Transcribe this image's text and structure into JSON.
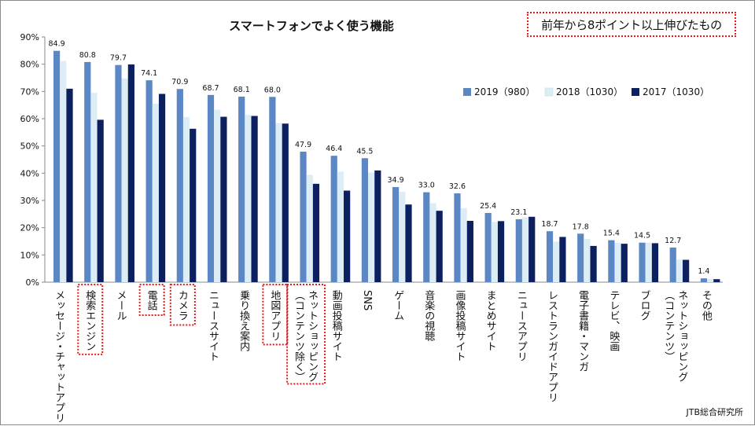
{
  "chart_data": {
    "type": "bar",
    "title": "スマートフォンでよく使う機能",
    "ylim": [
      0,
      90
    ],
    "y_ticks": [
      "0%",
      "10%",
      "20%",
      "30%",
      "40%",
      "50%",
      "60%",
      "70%",
      "80%",
      "90%"
    ],
    "categories": [
      "メッセージ・チャットアプリ",
      "検索エンジン",
      "メール",
      "電話",
      "カメラ",
      "ニュースサイト",
      "乗り換え案内",
      "地図アプリ",
      "ネットショッピング（コンテンツ除く）",
      "動画投稿サイト",
      "SNS",
      "ゲーム",
      "音楽の視聴",
      "画像投稿サイト",
      "まとめサイト",
      "ニュースアプリ",
      "レストランガイドアプリ",
      "電子書籍・マンガ",
      "テレビ、映画",
      "ブログ",
      "ネットショッピング（コンテンツ）",
      "その他"
    ],
    "series": [
      {
        "name": "2019（980）",
        "color": "#5b87c5",
        "values": [
          84.9,
          80.8,
          79.7,
          74.1,
          70.9,
          68.7,
          68.1,
          68.0,
          47.9,
          46.4,
          45.5,
          34.9,
          33.0,
          32.6,
          25.4,
          23.1,
          18.7,
          17.8,
          15.4,
          14.5,
          12.7,
          1.4
        ]
      },
      {
        "name": "2018（1030）",
        "color": "#dcedf5",
        "values": [
          81.2,
          69.5,
          74.8,
          65.5,
          60.6,
          63.3,
          61.4,
          58.3,
          39.4,
          40.6,
          40.2,
          33.2,
          29.0,
          27.2,
          22.1,
          23.8,
          14.9,
          15.9,
          14.4,
          14.5,
          8.3,
          1.2
        ]
      },
      {
        "name": "2017（1030）",
        "color": "#0c1f5e",
        "values": [
          71.0,
          59.6,
          79.9,
          69.1,
          56.3,
          60.7,
          61.0,
          58.2,
          36.1,
          33.6,
          41.0,
          28.5,
          26.2,
          22.5,
          22.4,
          24.0,
          16.6,
          13.3,
          14.1,
          14.3,
          8.2,
          1.1
        ]
      }
    ],
    "data_labels": [
      "84.9",
      "80.8",
      "79.7",
      "74.1",
      "70.9",
      "68.7",
      "68.1",
      "68.0",
      "47.9",
      "46.4",
      "45.5",
      "34.9",
      "33.0",
      "32.6",
      "25.4",
      "23.1",
      "18.7",
      "17.8",
      "15.4",
      "14.5",
      "12.7",
      "1.4"
    ],
    "highlighted_categories": [
      "検索エンジン",
      "電話",
      "カメラ",
      "地図アプリ",
      "ネットショッピング（コンテンツ除く）"
    ],
    "highlight_color": "#e31b1b",
    "legend_position": "top-right",
    "grid": false
  },
  "annotation": "前年から8ポイント以上伸びたもの",
  "source": "JTB総合研究所"
}
